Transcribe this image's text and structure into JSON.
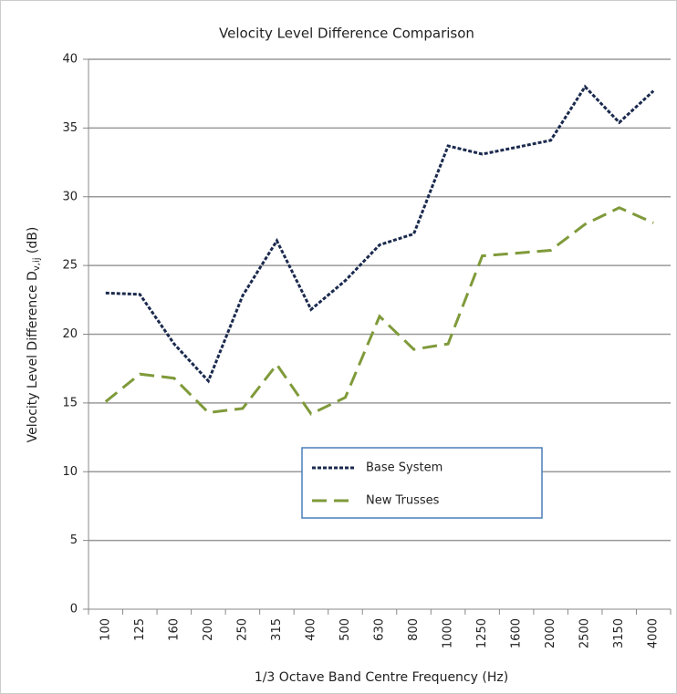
{
  "chart_data": {
    "type": "line",
    "title": "Velocity Level Difference Comparison",
    "xlabel": "1/3 Octave Band Centre Frequency (Hz)",
    "ylabel": [
      "Velocity Level Difference D",
      "v,ij",
      " (dB)"
    ],
    "categories": [
      "100",
      "125",
      "160",
      "200",
      "250",
      "315",
      "400",
      "500",
      "630",
      "800",
      "1000",
      "1250",
      "1600",
      "2000",
      "2500",
      "3150",
      "4000"
    ],
    "series": [
      {
        "name": "Base System",
        "color": "#1b2a4e",
        "dash": "dotted",
        "values": [
          23.0,
          22.9,
          19.3,
          16.6,
          22.8,
          26.8,
          21.8,
          23.9,
          26.5,
          27.3,
          33.7,
          33.1,
          33.6,
          34.1,
          38.0,
          35.4,
          37.7
        ]
      },
      {
        "name": "New Trusses",
        "color": "#7f9a3a",
        "dash": "dashed",
        "values": [
          15.1,
          17.1,
          16.8,
          14.3,
          14.6,
          17.8,
          14.2,
          15.4,
          21.3,
          18.9,
          19.3,
          25.7,
          25.9,
          26.1,
          28.0,
          29.2,
          28.1
        ]
      }
    ],
    "ylim": [
      0,
      40
    ],
    "yticks": [
      0,
      5,
      10,
      15,
      20,
      25,
      30,
      35,
      40
    ],
    "grid": true,
    "legend": "center"
  }
}
